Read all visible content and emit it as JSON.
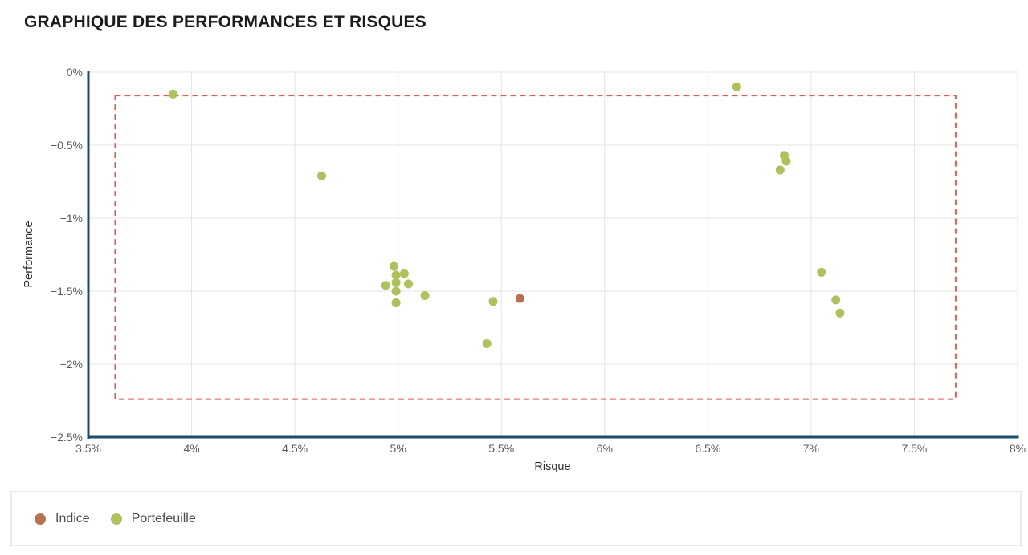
{
  "title": "GRAPHIQUE DES PERFORMANCES ET RISQUES",
  "chart_data": {
    "type": "scatter",
    "title": "GRAPHIQUE DES PERFORMANCES ET RISQUES",
    "xlabel": "Risque",
    "ylabel": "Performance",
    "xlim": [
      3.5,
      8
    ],
    "ylim": [
      -2.5,
      0
    ],
    "grid": true,
    "legend_position": "bottom",
    "x_ticks": {
      "values": [
        3.5,
        4,
        4.5,
        5,
        5.5,
        6,
        6.5,
        7,
        7.5,
        8
      ],
      "labels": [
        "3.5%",
        "4%",
        "4.5%",
        "5%",
        "5.5%",
        "6%",
        "6.5%",
        "7%",
        "7.5%",
        "8%"
      ]
    },
    "y_ticks": {
      "values": [
        0,
        -0.5,
        -1,
        -1.5,
        -2,
        -2.5
      ],
      "labels": [
        "0%",
        "−0.5%",
        "−1%",
        "−1.5%",
        "−2%",
        "−2.5%"
      ]
    },
    "series": [
      {
        "name": "Indice",
        "color": "#b8714f",
        "points": [
          {
            "x": 5.59,
            "y": -1.55
          }
        ]
      },
      {
        "name": "Portefeuille",
        "color": "#adc25c",
        "points": [
          {
            "x": 3.91,
            "y": -0.15
          },
          {
            "x": 4.63,
            "y": -0.71
          },
          {
            "x": 6.64,
            "y": -0.1
          },
          {
            "x": 6.87,
            "y": -0.57
          },
          {
            "x": 6.88,
            "y": -0.61
          },
          {
            "x": 6.85,
            "y": -0.67
          },
          {
            "x": 4.98,
            "y": -1.33
          },
          {
            "x": 4.99,
            "y": -1.39
          },
          {
            "x": 5.03,
            "y": -1.38
          },
          {
            "x": 4.94,
            "y": -1.46
          },
          {
            "x": 5.05,
            "y": -1.45
          },
          {
            "x": 4.99,
            "y": -1.44
          },
          {
            "x": 4.99,
            "y": -1.5
          },
          {
            "x": 5.13,
            "y": -1.53
          },
          {
            "x": 4.99,
            "y": -1.58
          },
          {
            "x": 5.46,
            "y": -1.57
          },
          {
            "x": 5.43,
            "y": -1.86
          },
          {
            "x": 7.05,
            "y": -1.37
          },
          {
            "x": 7.12,
            "y": -1.56
          },
          {
            "x": 7.14,
            "y": -1.65
          }
        ]
      }
    ],
    "annotation_box": {
      "type": "dashed-rect",
      "x_min": 3.63,
      "x_max": 7.7,
      "y_min": -2.24,
      "y_max": -0.16,
      "color": "#dc5c5c"
    }
  },
  "legend": {
    "items": [
      {
        "label": "Indice",
        "color": "#b8714f"
      },
      {
        "label": "Portefeuille",
        "color": "#adc25c"
      }
    ]
  },
  "colors": {
    "axis": "#1b4d6b",
    "grid": "#e4e4e4",
    "tick_text": "#595959",
    "point_radius": 5.5
  }
}
